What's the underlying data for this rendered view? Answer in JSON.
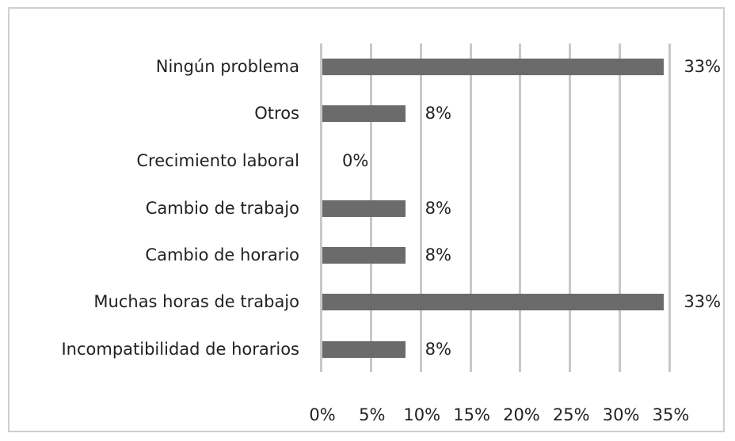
{
  "chart_data": {
    "type": "bar",
    "orientation": "horizontal",
    "title": "",
    "xlabel": "",
    "ylabel": "",
    "categories": [
      "Ningún problema",
      "Otros",
      "Crecimiento laboral",
      "Cambio de trabajo",
      "Cambio de horario",
      "Muchas horas de trabajo",
      "Incompatibilidad de horarios"
    ],
    "values": [
      33,
      8,
      0,
      8,
      8,
      33,
      8
    ],
    "value_labels": [
      "33%",
      "8%",
      "0%",
      "8%",
      "8%",
      "33%",
      "8%"
    ],
    "xlim": [
      0,
      35
    ],
    "x_ticks": [
      "0%",
      "5%",
      "10%",
      "15%",
      "20%",
      "25%",
      "30%",
      "35%"
    ],
    "grid": "vertical",
    "legend": "none",
    "bar_color": "#6b6b6b"
  }
}
